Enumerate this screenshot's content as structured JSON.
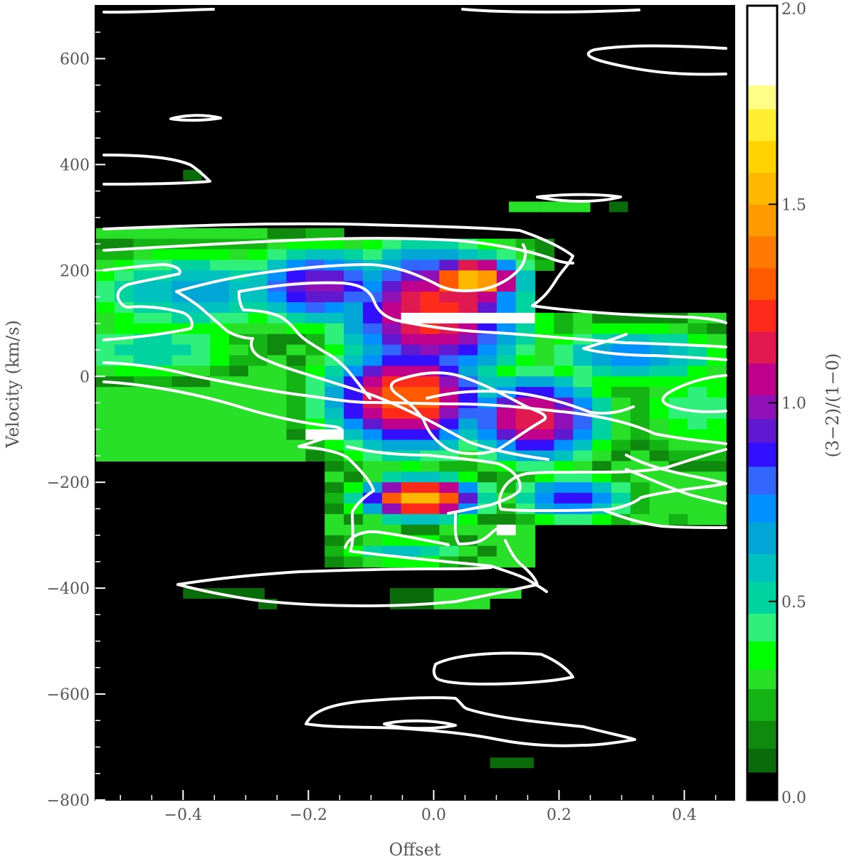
{
  "chart_data": {
    "type": "heatmap",
    "title": "",
    "xlabel": "Offset",
    "ylabel": "Velocity (km/s)",
    "colorbar_label": "(3−2)/(1−0)",
    "xlim": [
      -0.54,
      0.48
    ],
    "ylim": [
      -800,
      700
    ],
    "x_ticks": [
      -0.4,
      -0.2,
      0.0,
      0.2,
      0.4
    ],
    "x_tick_labels": [
      "−0.4",
      "−0.2",
      "0.0",
      "0.2",
      "0.4"
    ],
    "y_ticks": [
      -800,
      -600,
      -400,
      -200,
      0,
      200,
      400,
      600
    ],
    "y_tick_labels": [
      "−800",
      "−600",
      "−400",
      "−200",
      "0",
      "200",
      "400",
      "600"
    ],
    "colorbar_range": [
      0.0,
      2.0
    ],
    "colorbar_ticks": [
      0.0,
      0.5,
      1.0,
      1.5,
      2.0
    ],
    "colorbar_tick_labels": [
      "0.0",
      "0.5",
      "1.0",
      "1.5",
      "2.0"
    ],
    "background_color": "#000000",
    "contour_color": "#ffffff",
    "colormap": [
      [
        0.0,
        "#000000"
      ],
      [
        0.07,
        "#0a6b0a"
      ],
      [
        0.13,
        "#0f8a0f"
      ],
      [
        0.2,
        "#14b414"
      ],
      [
        0.28,
        "#28e028"
      ],
      [
        0.33,
        "#00ff00"
      ],
      [
        0.4,
        "#2ef07a"
      ],
      [
        0.47,
        "#00d2a0"
      ],
      [
        0.55,
        "#00c0c0"
      ],
      [
        0.62,
        "#00a6d6"
      ],
      [
        0.7,
        "#0090ff"
      ],
      [
        0.77,
        "#3366ff"
      ],
      [
        0.84,
        "#3210ff"
      ],
      [
        0.9,
        "#6018d0"
      ],
      [
        0.96,
        "#9010b8"
      ],
      [
        1.02,
        "#c0008c"
      ],
      [
        1.1,
        "#e01a50"
      ],
      [
        1.18,
        "#ff2b1a"
      ],
      [
        1.26,
        "#ff5a00"
      ],
      [
        1.34,
        "#ff7a00"
      ],
      [
        1.42,
        "#ff9a00"
      ],
      [
        1.5,
        "#ffb800"
      ],
      [
        1.58,
        "#ffd200"
      ],
      [
        1.66,
        "#ffee30"
      ],
      [
        1.74,
        "#ffff88"
      ],
      [
        1.8,
        "#ffffff"
      ],
      [
        2.0,
        "#ffffff"
      ]
    ],
    "grid": false,
    "legend": "colorbar-right"
  }
}
